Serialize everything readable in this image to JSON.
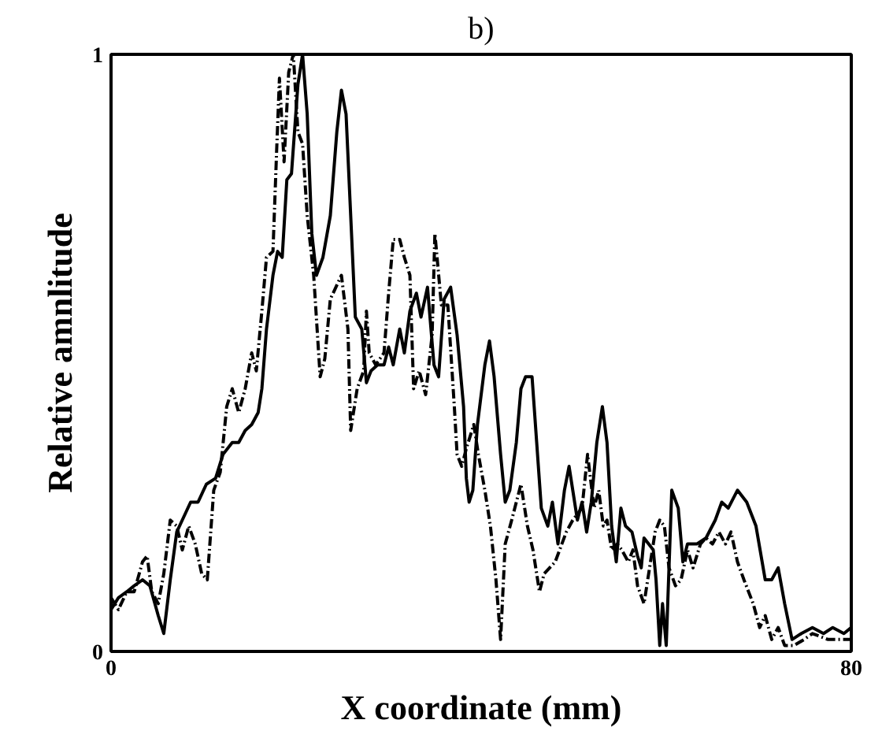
{
  "chart_data": {
    "type": "line",
    "title": "b)",
    "xlabel": "X coordinate (mm)",
    "ylabel": "Relative amnlitude",
    "xlim": [
      0,
      80
    ],
    "ylim": [
      0,
      1
    ],
    "xticks": [
      0,
      80
    ],
    "yticks": [
      0,
      1
    ],
    "marker": "none",
    "series": [
      {
        "color": "#000000",
        "line_style": "solid",
        "x": [
          0,
          0.8,
          1.7,
          2.5,
          3.4,
          4.2,
          5.1,
          5.7,
          6.4,
          7.1,
          7.7,
          8.6,
          9.4,
          10.3,
          11.3,
          12.1,
          13.1,
          13.8,
          14.5,
          15.2,
          15.9,
          16.3,
          16.8,
          17.5,
          18.0,
          18.5,
          19.0,
          19.5,
          20.2,
          20.7,
          21.2,
          21.7,
          22.2,
          22.9,
          23.7,
          24.4,
          24.9,
          25.4,
          25.9,
          26.4,
          27.1,
          27.6,
          28.1,
          28.8,
          29.5,
          30.0,
          30.5,
          31.2,
          31.7,
          32.3,
          33.0,
          33.5,
          34.2,
          34.9,
          35.4,
          36.0,
          36.7,
          37.4,
          38.1,
          38.4,
          38.7,
          39.1,
          39.6,
          40.4,
          40.9,
          41.4,
          42.1,
          42.6,
          43.1,
          43.8,
          44.3,
          44.8,
          45.5,
          46.0,
          46.5,
          47.2,
          47.7,
          48.3,
          49.0,
          49.5,
          49.9,
          50.4,
          50.9,
          51.4,
          51.9,
          52.5,
          53.1,
          53.6,
          54.1,
          54.6,
          55.1,
          55.6,
          56.3,
          56.9,
          57.3,
          57.6,
          58.1,
          58.6,
          58.9,
          59.3,
          59.6,
          60.0,
          60.6,
          61.3,
          61.8,
          62.3,
          63.3,
          64.3,
          65.3,
          66.0,
          66.7,
          67.7,
          68.7,
          69.7,
          70.7,
          71.4,
          72.1,
          72.8,
          73.6,
          74.6,
          75.8,
          77.0,
          78.0,
          79.2,
          80
        ],
        "values": [
          0.07,
          0.09,
          0.1,
          0.11,
          0.12,
          0.11,
          0.06,
          0.03,
          0.12,
          0.2,
          0.22,
          0.25,
          0.25,
          0.28,
          0.29,
          0.33,
          0.35,
          0.35,
          0.37,
          0.38,
          0.4,
          0.44,
          0.54,
          0.63,
          0.67,
          0.66,
          0.79,
          0.8,
          0.95,
          1.0,
          0.9,
          0.7,
          0.63,
          0.66,
          0.73,
          0.87,
          0.94,
          0.9,
          0.73,
          0.56,
          0.54,
          0.45,
          0.47,
          0.48,
          0.48,
          0.51,
          0.48,
          0.54,
          0.5,
          0.57,
          0.6,
          0.56,
          0.61,
          0.48,
          0.46,
          0.59,
          0.61,
          0.53,
          0.41,
          0.29,
          0.25,
          0.27,
          0.38,
          0.48,
          0.52,
          0.46,
          0.33,
          0.25,
          0.27,
          0.35,
          0.44,
          0.46,
          0.46,
          0.35,
          0.24,
          0.21,
          0.25,
          0.18,
          0.27,
          0.31,
          0.27,
          0.22,
          0.25,
          0.2,
          0.25,
          0.35,
          0.41,
          0.35,
          0.21,
          0.15,
          0.24,
          0.21,
          0.2,
          0.16,
          0.14,
          0.19,
          0.18,
          0.17,
          0.12,
          0.01,
          0.08,
          0.01,
          0.27,
          0.24,
          0.15,
          0.18,
          0.18,
          0.19,
          0.22,
          0.25,
          0.24,
          0.27,
          0.25,
          0.21,
          0.12,
          0.12,
          0.14,
          0.08,
          0.02,
          0.03,
          0.04,
          0.03,
          0.04,
          0.03,
          0.04
        ]
      },
      {
        "color": "#000000",
        "line_style": "dashed",
        "x": [
          0,
          0.8,
          1.7,
          2.5,
          3.4,
          3.9,
          4.4,
          5.1,
          5.7,
          6.4,
          7.1,
          7.7,
          8.4,
          9.1,
          9.8,
          10.4,
          11.1,
          11.8,
          12.5,
          13.1,
          13.8,
          14.5,
          15.2,
          15.7,
          16.3,
          16.8,
          17.5,
          17.9,
          18.2,
          18.7,
          19.2,
          19.7,
          20.2,
          20.7,
          21.2,
          21.9,
          22.6,
          23.1,
          23.7,
          24.3,
          24.9,
          25.6,
          25.9,
          26.6,
          27.3,
          27.6,
          27.9,
          28.6,
          29.5,
          30.0,
          30.5,
          31.2,
          31.7,
          32.3,
          32.7,
          33.3,
          34.0,
          34.7,
          35.0,
          35.7,
          36.4,
          37.1,
          37.4,
          37.9,
          38.4,
          39.2,
          39.7,
          40.4,
          41.0,
          41.6,
          42.1,
          42.6,
          43.3,
          44.3,
          45.0,
          45.6,
          46.3,
          46.8,
          48.0,
          49.2,
          49.9,
          50.9,
          51.5,
          52.2,
          52.7,
          53.2,
          53.6,
          54.1,
          54.7,
          55.2,
          55.9,
          56.4,
          56.9,
          57.6,
          58.3,
          58.8,
          59.3,
          59.8,
          60.3,
          61.0,
          61.6,
          62.3,
          62.9,
          63.7,
          64.3,
          65.0,
          65.7,
          66.4,
          67.0,
          67.7,
          68.4,
          69.4,
          70.1,
          70.7,
          71.4,
          72.1,
          72.8,
          73.8,
          74.9,
          75.8,
          77.5,
          79.2,
          80
        ],
        "values": [
          0.09,
          0.07,
          0.1,
          0.1,
          0.15,
          0.16,
          0.1,
          0.08,
          0.13,
          0.22,
          0.21,
          0.17,
          0.21,
          0.18,
          0.13,
          0.12,
          0.27,
          0.3,
          0.41,
          0.44,
          0.4,
          0.44,
          0.5,
          0.47,
          0.57,
          0.66,
          0.67,
          0.84,
          0.96,
          0.82,
          0.97,
          1.0,
          0.87,
          0.85,
          0.73,
          0.63,
          0.46,
          0.49,
          0.59,
          0.61,
          0.63,
          0.54,
          0.37,
          0.44,
          0.47,
          0.57,
          0.5,
          0.48,
          0.5,
          0.6,
          0.69,
          0.69,
          0.66,
          0.63,
          0.44,
          0.47,
          0.43,
          0.53,
          0.7,
          0.58,
          0.58,
          0.41,
          0.33,
          0.31,
          0.34,
          0.38,
          0.33,
          0.27,
          0.21,
          0.12,
          0.02,
          0.18,
          0.22,
          0.28,
          0.21,
          0.17,
          0.1,
          0.13,
          0.15,
          0.2,
          0.22,
          0.24,
          0.33,
          0.24,
          0.27,
          0.21,
          0.22,
          0.17,
          0.18,
          0.17,
          0.15,
          0.17,
          0.11,
          0.08,
          0.15,
          0.2,
          0.22,
          0.21,
          0.14,
          0.11,
          0.12,
          0.17,
          0.14,
          0.18,
          0.19,
          0.18,
          0.2,
          0.18,
          0.2,
          0.15,
          0.12,
          0.08,
          0.04,
          0.06,
          0.02,
          0.04,
          0.01,
          0.01,
          0.02,
          0.03,
          0.02,
          0.02,
          0.02
        ]
      }
    ]
  }
}
